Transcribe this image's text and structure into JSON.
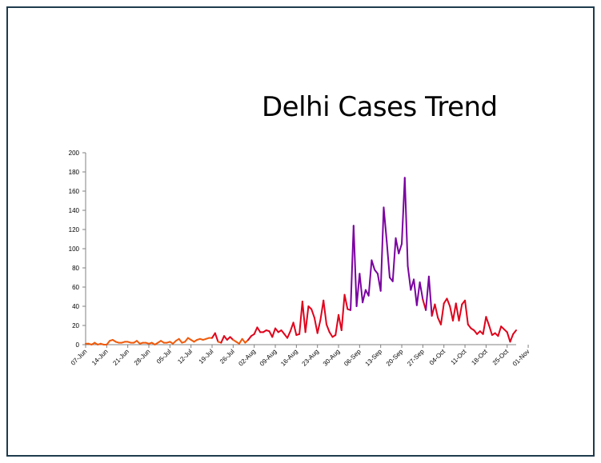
{
  "chart_data": {
    "type": "line",
    "title": "Delhi Cases Trend",
    "xlabel": "",
    "ylabel": "",
    "ylim": [
      0,
      200
    ],
    "yticks": [
      0,
      20,
      40,
      60,
      80,
      100,
      120,
      140,
      160,
      180,
      200
    ],
    "xticks": [
      "07-Jun",
      "14-Jun",
      "21-Jun",
      "28-Jun",
      "05-Jul",
      "12-Jul",
      "19-Jul",
      "26-Jul",
      "02-Aug",
      "09-Aug",
      "16-Aug",
      "23-Aug",
      "30-Aug",
      "06-Sep",
      "13-Sep",
      "20-Sep",
      "27-Sep",
      "04-Oct",
      "11-Oct",
      "18-Oct",
      "25-Oct",
      "01-Nov"
    ],
    "grid": false,
    "legend": "none",
    "colors": {
      "low": "#f05a0a",
      "mid": "#e0001a",
      "high": "#7a00a0",
      "axis": "#808080",
      "frame": "#1f3b4d"
    },
    "start_date": "07-Jun",
    "values": [
      1,
      1,
      0,
      2,
      0,
      1,
      0,
      0,
      4,
      5,
      3,
      2,
      2,
      3,
      3,
      2,
      2,
      4,
      1,
      2,
      2,
      1,
      2,
      0,
      2,
      4,
      2,
      2,
      3,
      1,
      4,
      6,
      2,
      3,
      7,
      5,
      3,
      5,
      6,
      5,
      6,
      7,
      7,
      12,
      3,
      2,
      9,
      5,
      8,
      5,
      3,
      1,
      6,
      2,
      5,
      9,
      11,
      18,
      13,
      13,
      15,
      14,
      8,
      17,
      13,
      15,
      11,
      7,
      14,
      23,
      10,
      11,
      45,
      13,
      40,
      37,
      28,
      12,
      26,
      46,
      21,
      13,
      8,
      10,
      31,
      15,
      52,
      37,
      36,
      124,
      40,
      74,
      44,
      57,
      51,
      88,
      78,
      74,
      56,
      143,
      108,
      70,
      66,
      111,
      95,
      105,
      174,
      82,
      57,
      68,
      41,
      65,
      47,
      36,
      71,
      30,
      42,
      28,
      21,
      43,
      48,
      40,
      25,
      43,
      25,
      42,
      46,
      21,
      17,
      15,
      11,
      14,
      11,
      29,
      20,
      10,
      12,
      9,
      19,
      16,
      13,
      3,
      11,
      15
    ]
  }
}
